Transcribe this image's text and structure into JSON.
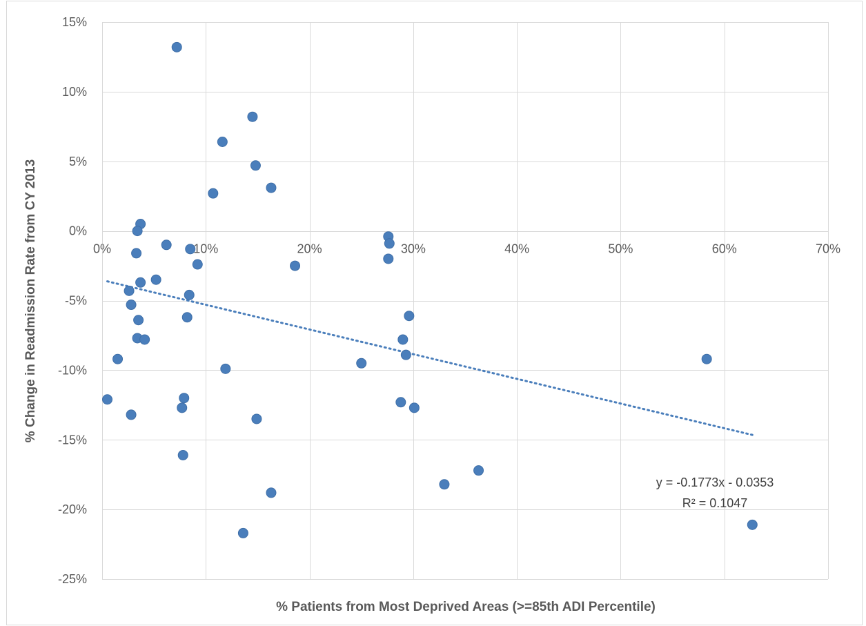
{
  "chart_data": {
    "type": "scatter",
    "xlabel": "% Patients from Most Deprived Areas (>=85th ADI Percentile)",
    "ylabel": "% Change in Readmission Rate from CY 2013",
    "xlim": [
      0,
      0.7
    ],
    "ylim": [
      -0.25,
      0.15
    ],
    "x_ticks": [
      0,
      0.1,
      0.2,
      0.3,
      0.4,
      0.5,
      0.6,
      0.7
    ],
    "x_tick_labels": [
      "0%",
      "10%",
      "20%",
      "30%",
      "40%",
      "50%",
      "60%",
      "70%"
    ],
    "y_ticks": [
      0.15,
      0.1,
      0.05,
      0.0,
      -0.05,
      -0.1,
      -0.15,
      -0.2,
      -0.25
    ],
    "y_tick_labels": [
      "15%",
      "10%",
      "5%",
      "0%",
      "-5%",
      "-10%",
      "-15%",
      "-20%",
      "-25%"
    ],
    "grid": true,
    "marker_color": "#4a7ebb",
    "points": [
      {
        "x": 0.072,
        "y": 0.132
      },
      {
        "x": 0.145,
        "y": 0.082
      },
      {
        "x": 0.116,
        "y": 0.064
      },
      {
        "x": 0.148,
        "y": 0.047
      },
      {
        "x": 0.163,
        "y": 0.031
      },
      {
        "x": 0.107,
        "y": 0.027
      },
      {
        "x": 0.037,
        "y": 0.005
      },
      {
        "x": 0.034,
        "y": 0.0
      },
      {
        "x": 0.062,
        "y": -0.01
      },
      {
        "x": 0.085,
        "y": -0.013
      },
      {
        "x": 0.033,
        "y": -0.016
      },
      {
        "x": 0.092,
        "y": -0.024
      },
      {
        "x": 0.186,
        "y": -0.025
      },
      {
        "x": 0.052,
        "y": -0.035
      },
      {
        "x": 0.037,
        "y": -0.037
      },
      {
        "x": 0.026,
        "y": -0.043
      },
      {
        "x": 0.084,
        "y": -0.046
      },
      {
        "x": 0.028,
        "y": -0.053
      },
      {
        "x": 0.082,
        "y": -0.062
      },
      {
        "x": 0.035,
        "y": -0.064
      },
      {
        "x": 0.034,
        "y": -0.077
      },
      {
        "x": 0.041,
        "y": -0.078
      },
      {
        "x": 0.015,
        "y": -0.092
      },
      {
        "x": 0.119,
        "y": -0.099
      },
      {
        "x": 0.005,
        "y": -0.121
      },
      {
        "x": 0.079,
        "y": -0.12
      },
      {
        "x": 0.077,
        "y": -0.127
      },
      {
        "x": 0.028,
        "y": -0.132
      },
      {
        "x": 0.149,
        "y": -0.135
      },
      {
        "x": 0.078,
        "y": -0.161
      },
      {
        "x": 0.163,
        "y": -0.188
      },
      {
        "x": 0.136,
        "y": -0.217
      },
      {
        "x": 0.25,
        "y": -0.095
      },
      {
        "x": 0.276,
        "y": -0.004
      },
      {
        "x": 0.277,
        "y": -0.009
      },
      {
        "x": 0.276,
        "y": -0.02
      },
      {
        "x": 0.296,
        "y": -0.061
      },
      {
        "x": 0.29,
        "y": -0.078
      },
      {
        "x": 0.293,
        "y": -0.089
      },
      {
        "x": 0.288,
        "y": -0.123
      },
      {
        "x": 0.301,
        "y": -0.127
      },
      {
        "x": 0.33,
        "y": -0.182
      },
      {
        "x": 0.363,
        "y": -0.172
      },
      {
        "x": 0.583,
        "y": -0.092
      },
      {
        "x": 0.627,
        "y": -0.211
      }
    ],
    "trendline": {
      "type": "linear",
      "slope": -0.1773,
      "intercept": -0.0353,
      "x_range": [
        0.005,
        0.627
      ],
      "equation": "y = -0.1773x - 0.0353",
      "r_squared": "R² = 0.1047"
    }
  }
}
